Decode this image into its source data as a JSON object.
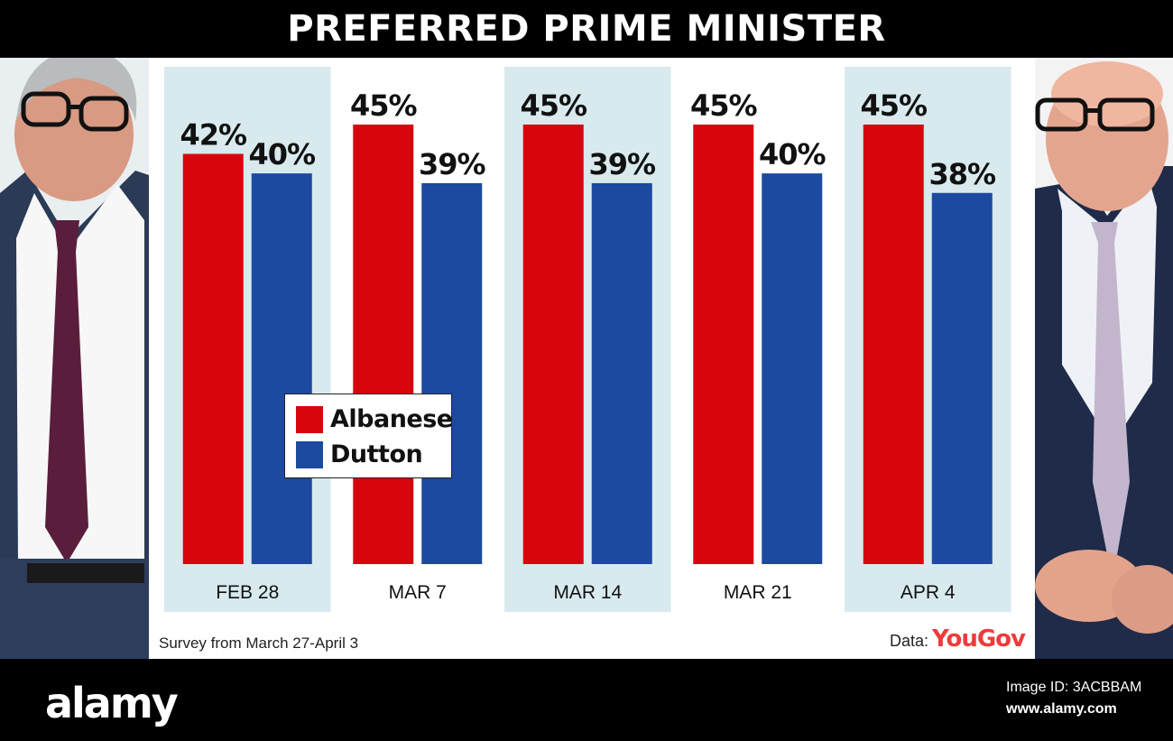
{
  "title": "PREFERRED PRIME MINISTER",
  "chart_data": {
    "type": "bar",
    "title": "PREFERRED PRIME MINISTER",
    "categories": [
      "FEB 28",
      "MAR 7",
      "MAR 14",
      "MAR 21",
      "APR 4"
    ],
    "series": [
      {
        "name": "Albanese",
        "values": [
          42,
          45,
          45,
          45,
          45
        ],
        "labels": [
          "42%",
          "45%",
          "45%",
          "45%",
          "45%"
        ]
      },
      {
        "name": "Dutton",
        "values": [
          40,
          39,
          39,
          40,
          38
        ],
        "labels": [
          "40%",
          "39%",
          "39%",
          "40%",
          "38%"
        ]
      }
    ],
    "ylim": [
      0,
      45
    ],
    "grid": false,
    "legend": "center-left"
  },
  "colors": {
    "albanese": "#d7060e",
    "dutton": "#1c4aa0",
    "band": "#d8eaee"
  },
  "legend": {
    "albanese": "Albanese",
    "dutton": "Dutton"
  },
  "footnote": "Survey from March 27-April 3",
  "source": {
    "label": "Data:",
    "brand": "YouGov"
  },
  "watermark": {
    "logo": "alamy",
    "image_id": "Image ID: 3ACBBAM",
    "url": "www.alamy.com"
  }
}
